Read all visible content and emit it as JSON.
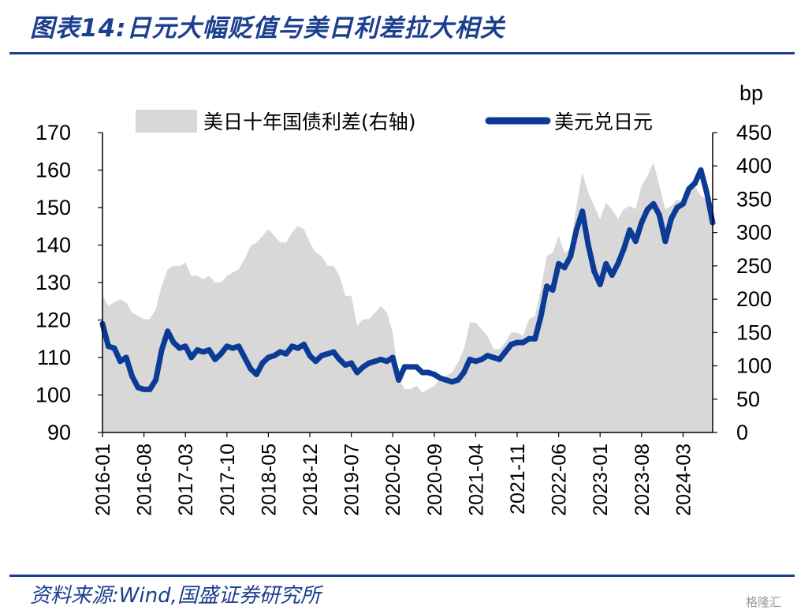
{
  "header": {
    "title": "图表14:日元大幅贬值与美日利差拉大相关"
  },
  "footer": {
    "source": "资料来源:Wind,国盛证券研究所",
    "watermark": "格隆汇"
  },
  "chart_data": {
    "type": "line+area",
    "right_unit": "bp",
    "left_ylim": [
      90,
      170
    ],
    "left_yticks": [
      90,
      100,
      110,
      120,
      130,
      140,
      150,
      160,
      170
    ],
    "right_ylim": [
      0,
      450
    ],
    "right_yticks": [
      0,
      50,
      100,
      150,
      200,
      250,
      300,
      350,
      400,
      450
    ],
    "x_range": [
      "2016-01",
      "2024-08"
    ],
    "x_ticks": [
      "2016-01",
      "2016-08",
      "2017-03",
      "2017-10",
      "2018-05",
      "2018-12",
      "2019-07",
      "2020-02",
      "2020-09",
      "2021-04",
      "2021-11",
      "2022-06",
      "2023-01",
      "2023-08",
      "2024-03"
    ],
    "legend_position": "top",
    "colors": {
      "spread": "#d8d8d8",
      "usdjpy": "#0c3b96"
    },
    "series": [
      {
        "name": "美日十年国债利差(右轴)",
        "kind": "area",
        "axis": "right",
        "points": [
          [
            "2016-01",
            205
          ],
          [
            "2016-02",
            190
          ],
          [
            "2016-03",
            195
          ],
          [
            "2016-04",
            200
          ],
          [
            "2016-05",
            195
          ],
          [
            "2016-06",
            180
          ],
          [
            "2016-07",
            175
          ],
          [
            "2016-08",
            170
          ],
          [
            "2016-09",
            170
          ],
          [
            "2016-10",
            185
          ],
          [
            "2016-11",
            220
          ],
          [
            "2016-12",
            245
          ],
          [
            "2017-01",
            250
          ],
          [
            "2017-02",
            250
          ],
          [
            "2017-03",
            255
          ],
          [
            "2017-04",
            235
          ],
          [
            "2017-05",
            235
          ],
          [
            "2017-06",
            230
          ],
          [
            "2017-07",
            235
          ],
          [
            "2017-08",
            225
          ],
          [
            "2017-09",
            225
          ],
          [
            "2017-10",
            235
          ],
          [
            "2017-11",
            240
          ],
          [
            "2017-12",
            245
          ],
          [
            "2018-01",
            260
          ],
          [
            "2018-02",
            280
          ],
          [
            "2018-03",
            285
          ],
          [
            "2018-04",
            295
          ],
          [
            "2018-05",
            305
          ],
          [
            "2018-06",
            295
          ],
          [
            "2018-07",
            285
          ],
          [
            "2018-08",
            285
          ],
          [
            "2018-09",
            300
          ],
          [
            "2018-10",
            310
          ],
          [
            "2018-11",
            305
          ],
          [
            "2018-12",
            285
          ],
          [
            "2019-01",
            270
          ],
          [
            "2019-02",
            265
          ],
          [
            "2019-03",
            250
          ],
          [
            "2019-04",
            250
          ],
          [
            "2019-05",
            235
          ],
          [
            "2019-06",
            205
          ],
          [
            "2019-07",
            205
          ],
          [
            "2019-08",
            160
          ],
          [
            "2019-09",
            170
          ],
          [
            "2019-10",
            170
          ],
          [
            "2019-11",
            180
          ],
          [
            "2019-12",
            190
          ],
          [
            "2020-01",
            180
          ],
          [
            "2020-02",
            150
          ],
          [
            "2020-03",
            80
          ],
          [
            "2020-04",
            65
          ],
          [
            "2020-05",
            65
          ],
          [
            "2020-06",
            70
          ],
          [
            "2020-07",
            60
          ],
          [
            "2020-08",
            65
          ],
          [
            "2020-09",
            70
          ],
          [
            "2020-10",
            80
          ],
          [
            "2020-11",
            85
          ],
          [
            "2020-12",
            90
          ],
          [
            "2021-01",
            105
          ],
          [
            "2021-02",
            125
          ],
          [
            "2021-03",
            165
          ],
          [
            "2021-04",
            165
          ],
          [
            "2021-05",
            155
          ],
          [
            "2021-06",
            145
          ],
          [
            "2021-07",
            125
          ],
          [
            "2021-08",
            125
          ],
          [
            "2021-09",
            135
          ],
          [
            "2021-10",
            150
          ],
          [
            "2021-11",
            150
          ],
          [
            "2021-12",
            145
          ],
          [
            "2022-01",
            170
          ],
          [
            "2022-02",
            175
          ],
          [
            "2022-03",
            215
          ],
          [
            "2022-04",
            265
          ],
          [
            "2022-05",
            270
          ],
          [
            "2022-06",
            295
          ],
          [
            "2022-07",
            270
          ],
          [
            "2022-08",
            275
          ],
          [
            "2022-09",
            340
          ],
          [
            "2022-10",
            390
          ],
          [
            "2022-11",
            360
          ],
          [
            "2022-12",
            340
          ],
          [
            "2023-01",
            320
          ],
          [
            "2023-02",
            345
          ],
          [
            "2023-03",
            335
          ],
          [
            "2023-04",
            320
          ],
          [
            "2023-05",
            335
          ],
          [
            "2023-06",
            340
          ],
          [
            "2023-07",
            335
          ],
          [
            "2023-08",
            370
          ],
          [
            "2023-09",
            385
          ],
          [
            "2023-10",
            405
          ],
          [
            "2023-11",
            370
          ],
          [
            "2023-12",
            335
          ],
          [
            "2024-01",
            340
          ],
          [
            "2024-02",
            350
          ],
          [
            "2024-03",
            345
          ],
          [
            "2024-04",
            370
          ],
          [
            "2024-05",
            370
          ],
          [
            "2024-06",
            355
          ],
          [
            "2024-07",
            350
          ],
          [
            "2024-08",
            320
          ]
        ]
      },
      {
        "name": "美元兑日元",
        "kind": "line",
        "axis": "left",
        "points": [
          [
            "2016-01",
            119
          ],
          [
            "2016-02",
            113
          ],
          [
            "2016-03",
            112.5
          ],
          [
            "2016-04",
            109
          ],
          [
            "2016-05",
            110
          ],
          [
            "2016-06",
            105
          ],
          [
            "2016-07",
            102
          ],
          [
            "2016-08",
            101.5
          ],
          [
            "2016-09",
            101.5
          ],
          [
            "2016-10",
            104
          ],
          [
            "2016-11",
            112
          ],
          [
            "2016-12",
            117
          ],
          [
            "2017-01",
            114
          ],
          [
            "2017-02",
            112.5
          ],
          [
            "2017-03",
            113
          ],
          [
            "2017-04",
            110
          ],
          [
            "2017-05",
            112
          ],
          [
            "2017-06",
            111.5
          ],
          [
            "2017-07",
            112
          ],
          [
            "2017-08",
            109.5
          ],
          [
            "2017-09",
            111
          ],
          [
            "2017-10",
            113
          ],
          [
            "2017-11",
            112.5
          ],
          [
            "2017-12",
            113
          ],
          [
            "2018-01",
            110
          ],
          [
            "2018-02",
            107
          ],
          [
            "2018-03",
            105.5
          ],
          [
            "2018-04",
            108.5
          ],
          [
            "2018-05",
            110
          ],
          [
            "2018-06",
            110.5
          ],
          [
            "2018-07",
            111.5
          ],
          [
            "2018-08",
            111
          ],
          [
            "2018-09",
            113
          ],
          [
            "2018-10",
            112.5
          ],
          [
            "2018-11",
            113.5
          ],
          [
            "2018-12",
            110.5
          ],
          [
            "2019-01",
            109
          ],
          [
            "2019-02",
            110.5
          ],
          [
            "2019-03",
            111
          ],
          [
            "2019-04",
            111.5
          ],
          [
            "2019-05",
            109.5
          ],
          [
            "2019-06",
            108
          ],
          [
            "2019-07",
            108.5
          ],
          [
            "2019-08",
            106
          ],
          [
            "2019-09",
            107.5
          ],
          [
            "2019-10",
            108.5
          ],
          [
            "2019-11",
            109
          ],
          [
            "2019-12",
            109.5
          ],
          [
            "2020-01",
            109
          ],
          [
            "2020-02",
            110
          ],
          [
            "2020-03",
            104
          ],
          [
            "2020-04",
            107.5
          ],
          [
            "2020-05",
            107.5
          ],
          [
            "2020-06",
            107.5
          ],
          [
            "2020-07",
            106
          ],
          [
            "2020-08",
            106
          ],
          [
            "2020-09",
            105.5
          ],
          [
            "2020-10",
            104.5
          ],
          [
            "2020-11",
            104
          ],
          [
            "2020-12",
            103.5
          ],
          [
            "2021-01",
            104
          ],
          [
            "2021-02",
            106
          ],
          [
            "2021-03",
            109.5
          ],
          [
            "2021-04",
            109
          ],
          [
            "2021-05",
            109.5
          ],
          [
            "2021-06",
            110.5
          ],
          [
            "2021-07",
            110
          ],
          [
            "2021-08",
            109.5
          ],
          [
            "2021-09",
            111.5
          ],
          [
            "2021-10",
            113.5
          ],
          [
            "2021-11",
            114
          ],
          [
            "2021-12",
            114
          ],
          [
            "2022-01",
            115
          ],
          [
            "2022-02",
            115
          ],
          [
            "2022-03",
            121
          ],
          [
            "2022-04",
            129
          ],
          [
            "2022-05",
            128
          ],
          [
            "2022-06",
            135
          ],
          [
            "2022-07",
            134
          ],
          [
            "2022-08",
            137
          ],
          [
            "2022-09",
            144
          ],
          [
            "2022-10",
            149
          ],
          [
            "2022-11",
            140
          ],
          [
            "2022-12",
            133
          ],
          [
            "2023-01",
            129.5
          ],
          [
            "2023-02",
            135
          ],
          [
            "2023-03",
            132
          ],
          [
            "2023-04",
            135
          ],
          [
            "2023-05",
            139
          ],
          [
            "2023-06",
            144
          ],
          [
            "2023-07",
            141
          ],
          [
            "2023-08",
            146
          ],
          [
            "2023-09",
            149.5
          ],
          [
            "2023-10",
            151
          ],
          [
            "2023-11",
            148
          ],
          [
            "2023-12",
            141
          ],
          [
            "2024-01",
            147
          ],
          [
            "2024-02",
            150
          ],
          [
            "2024-03",
            151
          ],
          [
            "2024-04",
            155
          ],
          [
            "2024-05",
            156.5
          ],
          [
            "2024-06",
            160
          ],
          [
            "2024-07",
            154
          ],
          [
            "2024-08",
            146
          ]
        ]
      }
    ]
  }
}
